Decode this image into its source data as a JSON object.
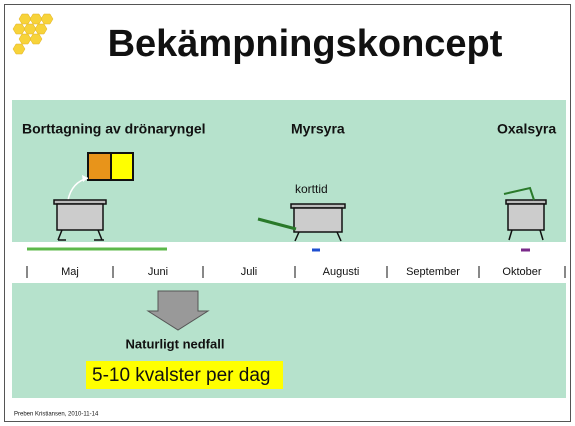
{
  "header": {
    "title": "Bekämpningskoncept"
  },
  "treatments": [
    {
      "label": "Borttagning av drönaryngel"
    },
    {
      "label": "Myrsyra",
      "note": "korttid"
    },
    {
      "label": "Oxalsyra"
    }
  ],
  "timeline": {
    "months": [
      "Maj",
      "Juni",
      "Juli",
      "Augusti",
      "September",
      "Oktober"
    ]
  },
  "natural_drop": {
    "label": "Naturligt nedfall",
    "callout": "5-10 kvalster per dag"
  },
  "footer": {
    "text": "Preben Kristiansen, 2010-11-14"
  }
}
